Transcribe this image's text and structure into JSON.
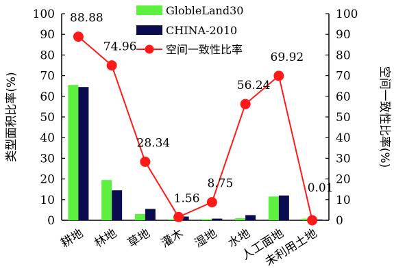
{
  "chart_data": {
    "type": "bar+line",
    "categories": [
      "耕地",
      "林地",
      "草地",
      "灌木",
      "湿地",
      "水地",
      "人工面地",
      "未利用土地"
    ],
    "series": [
      {
        "name": "GlobleLand30",
        "type": "bar",
        "axis": "left",
        "color": "#5ef040",
        "values": [
          65.5,
          19.5,
          3.0,
          0.5,
          0.5,
          1.0,
          11.5,
          0.8
        ]
      },
      {
        "name": "CHINA-2010",
        "type": "bar",
        "axis": "left",
        "color": "#0b0b50",
        "values": [
          64.5,
          14.5,
          5.5,
          1.8,
          0.8,
          2.5,
          12.0,
          0.4
        ]
      },
      {
        "name": "空间一致性比率",
        "type": "line",
        "axis": "right",
        "color": "#ff1a1a",
        "values": [
          88.88,
          74.96,
          28.34,
          1.56,
          8.75,
          56.24,
          69.92,
          0.01
        ]
      }
    ],
    "data_labels": [
      "88.88",
      "74.96",
      "28.34",
      "1.56",
      "8.75",
      "56.24",
      "69.92",
      "0.01"
    ],
    "ylabel": "类型面积比率(%)",
    "y2label": "空间一致性比率(%)",
    "ylim": [
      0,
      100
    ],
    "y2lim": [
      0,
      100
    ],
    "yticks": [
      0,
      10,
      20,
      30,
      40,
      50,
      60,
      70,
      80,
      90,
      100
    ],
    "legend_position": "top-center",
    "grid": false
  }
}
